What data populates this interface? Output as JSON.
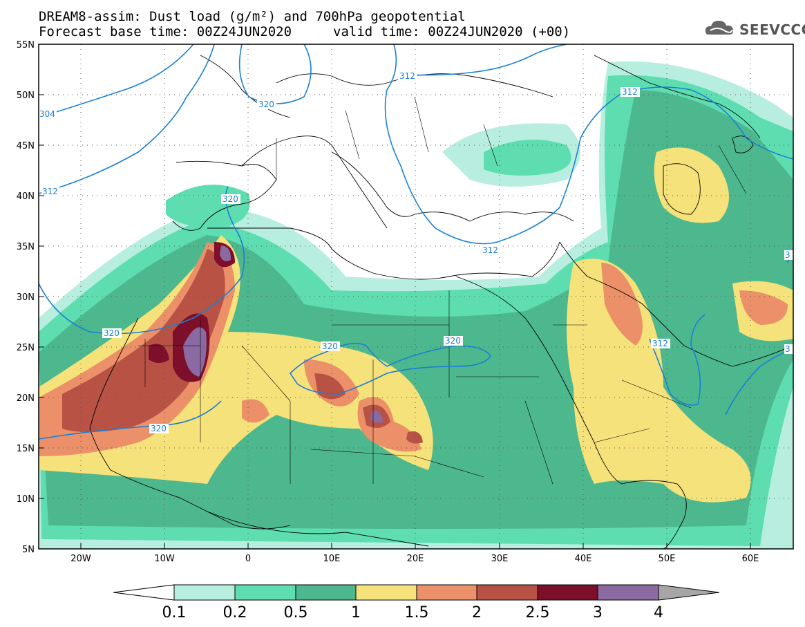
{
  "title_line1": "DREAM8-assim: Dust load (g/m²) and 700hPa geopotential",
  "title_line2": "Forecast base time: 00Z24JUN2020",
  "title_line2b": "valid time: 00Z24JUN2020 (+00)",
  "logo_text": "SEEVCCC",
  "lat_labels": [
    "55N",
    "50N",
    "45N",
    "40N",
    "35N",
    "30N",
    "25N",
    "20N",
    "15N",
    "10N",
    "5N"
  ],
  "lon_labels": [
    "20W",
    "10W",
    "0",
    "10E",
    "20E",
    "30E",
    "40E",
    "50E",
    "60E"
  ],
  "contour_labels": [
    "304",
    "312",
    "320",
    "320",
    "320",
    "320",
    "320",
    "312",
    "312",
    "312",
    "312",
    "320",
    "3",
    "3"
  ],
  "colorbar": {
    "ticks": [
      "0.1",
      "0.2",
      "0.5",
      "1",
      "1.5",
      "2",
      "2.5",
      "3",
      "4"
    ],
    "colors": [
      "#ffffff",
      "#b7eee0",
      "#5dddb0",
      "#4db88e",
      "#f5e27a",
      "#eb9068",
      "#b85244",
      "#7e0f2b",
      "#8a6aa0",
      "#a6a6a6"
    ]
  },
  "legend_colors": {
    "c01": "#b7eee0",
    "c02": "#5dddb0",
    "c05": "#4db88e",
    "c1": "#f5e27a",
    "c15": "#eb9068",
    "c2": "#b85244",
    "c25": "#7e0f2b",
    "c3": "#8a6aa0",
    "contour": "#1a7fd6"
  }
}
